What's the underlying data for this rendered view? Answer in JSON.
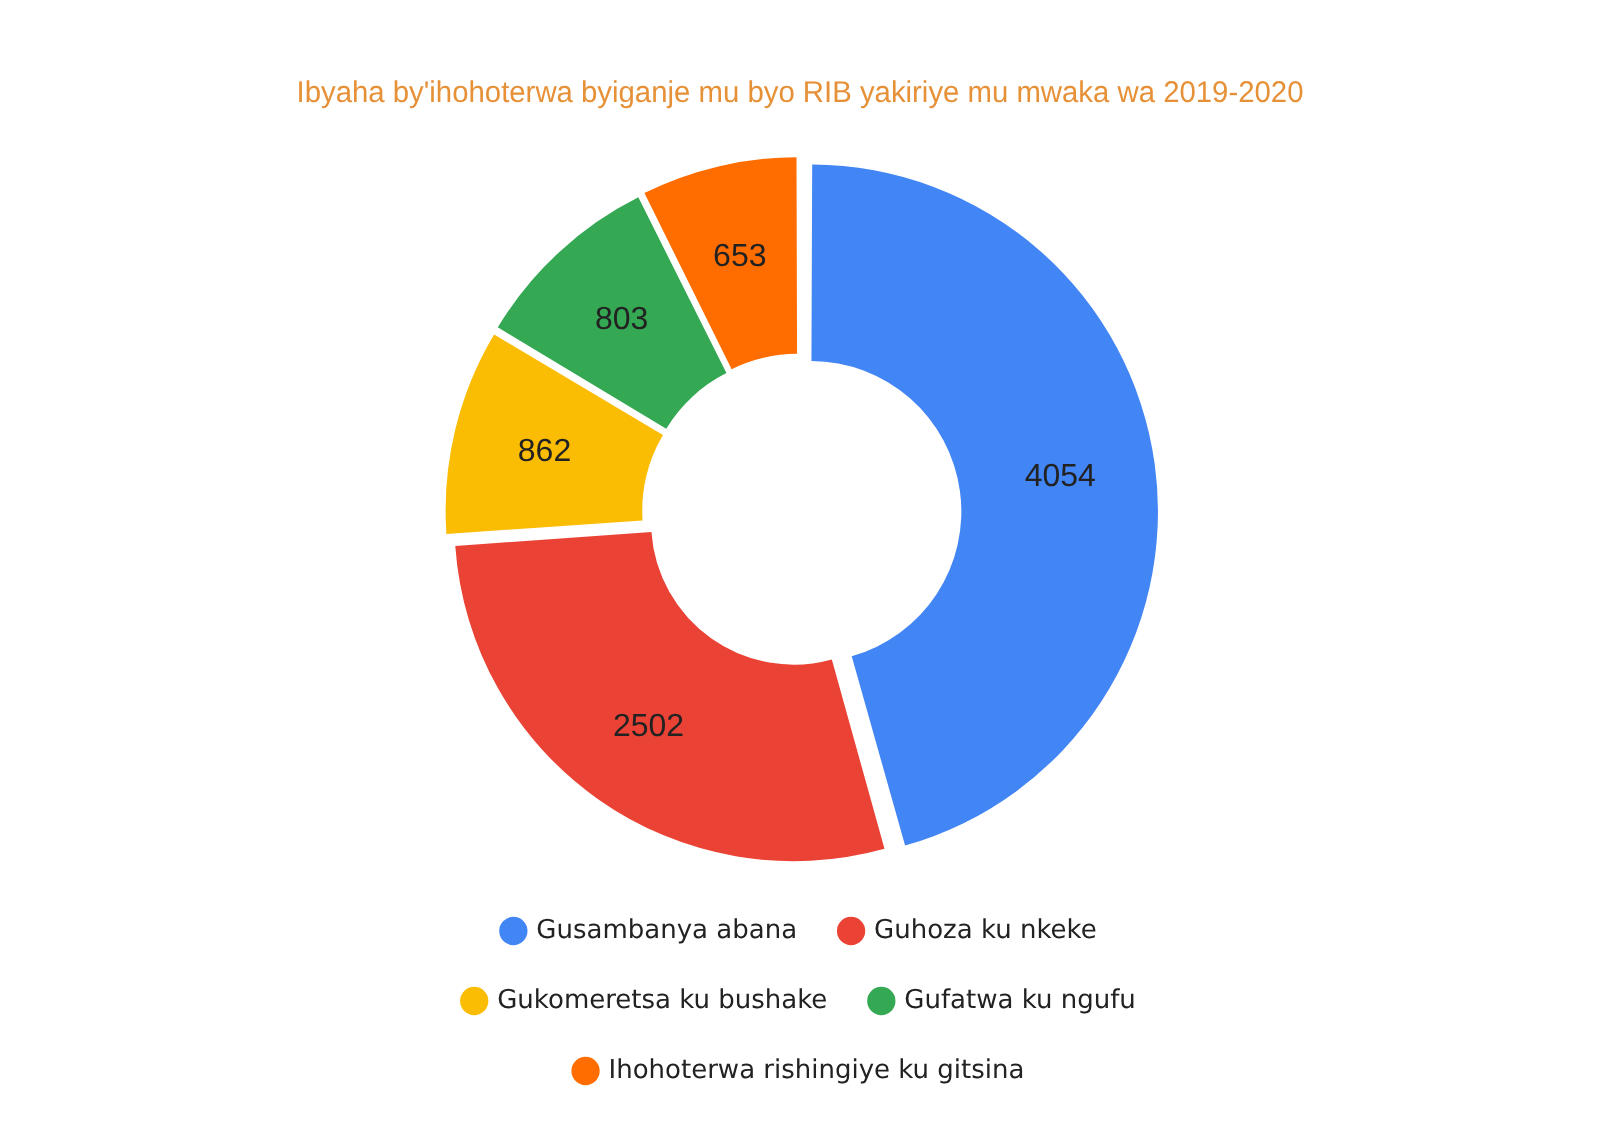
{
  "chart_data": {
    "type": "donut",
    "title": "Ibyaha by'ihohoterwa byiganje mu byo RIB yakiriye mu mwaka wa 2019-2020",
    "categories": [
      "Gusambanya abana",
      "Guhoza ku nkeke",
      "Gukomeretsa ku bushake",
      "Gufatwa ku ngufu",
      "Ihohoterwa rishingiye ku gitsina"
    ],
    "values": [
      4054,
      2502,
      862,
      803,
      653
    ],
    "colors": [
      "#4285f4",
      "#ea4335",
      "#fbbc04",
      "#34a853",
      "#ff6d01"
    ],
    "data_labels": true,
    "legend": "bottom"
  }
}
